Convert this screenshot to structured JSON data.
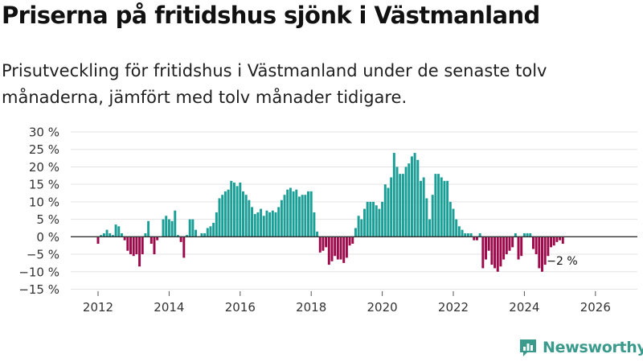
{
  "title": "Priserna på fritidshus sjönk i Västmanland",
  "subtitle": "Prisutveckling för fritidshus i Västmanland under de senaste tolv månaderna, jämfört med tolv månader tidigare.",
  "brand": {
    "name": "Newsworthy",
    "icon": "newsworthy-logo-icon",
    "color": "#3a9a8c"
  },
  "chart_data": {
    "type": "bar",
    "title": "Priserna på fritidshus sjönk i Västmanland",
    "xlabel": "",
    "ylabel": "",
    "ylim": [
      -15,
      30
    ],
    "yticks": [
      30,
      25,
      20,
      15,
      10,
      5,
      0,
      -5,
      -10,
      -15
    ],
    "ytick_labels": [
      "30 %",
      "25 %",
      "20 %",
      "15 %",
      "10 %",
      "5 %",
      "0 %",
      "−5 %",
      "−10 %",
      "−15 %"
    ],
    "xtick_labels": [
      "2012",
      "2014",
      "2016",
      "2018",
      "2020",
      "2022",
      "2024",
      "2026"
    ],
    "x_start": "2012-01",
    "frequency": "monthly",
    "colors": {
      "positive": "#1b9e96",
      "negative": "#9c0a4c",
      "zero_line": "#333333",
      "grid": "#e3e3e3"
    },
    "annotation": {
      "label": "−2 %",
      "anchor": "last-bar"
    },
    "values": [
      -2,
      0.5,
      1,
      2,
      1,
      0.5,
      3.5,
      3,
      1,
      -1,
      -4,
      -5,
      -5.5,
      -5,
      -8.5,
      -5,
      1,
      4.5,
      -2,
      -5,
      -1,
      0,
      5,
      6,
      5,
      4.5,
      7.5,
      0.5,
      -1.5,
      -6,
      0.5,
      5,
      5,
      2,
      0,
      1,
      1,
      2.5,
      3,
      4,
      7,
      11,
      12,
      13,
      13.5,
      16,
      15.5,
      14.5,
      15.5,
      13,
      12,
      10.5,
      8.5,
      6.5,
      7,
      8,
      6,
      7.5,
      7,
      7.5,
      7,
      8.5,
      10.5,
      12,
      13.5,
      14,
      13,
      13.5,
      11.5,
      12,
      12,
      13,
      13,
      7,
      1.5,
      -4.5,
      -4,
      -3,
      -8,
      -7,
      -5.5,
      -6.5,
      -6.5,
      -7.5,
      -6,
      -2.5,
      -2,
      2.5,
      6,
      5,
      8,
      10,
      10,
      10,
      9,
      8,
      10,
      15,
      14,
      17,
      24,
      20,
      18,
      18,
      20,
      21,
      23,
      24,
      22,
      16,
      17,
      11,
      5,
      12,
      18,
      18,
      17,
      16,
      16,
      10,
      8,
      5,
      3,
      2,
      1,
      1,
      1,
      -1,
      -1,
      1,
      -9,
      -6.5,
      -4,
      -8,
      -9,
      -10,
      -8.5,
      -6.5,
      -5,
      -4,
      -3,
      1,
      -6.5,
      -5.5,
      1,
      1,
      1,
      -3.5,
      -5,
      -9,
      -10,
      -8,
      -5.5,
      -3,
      -2.5,
      -1.5,
      -1,
      -2
    ]
  }
}
